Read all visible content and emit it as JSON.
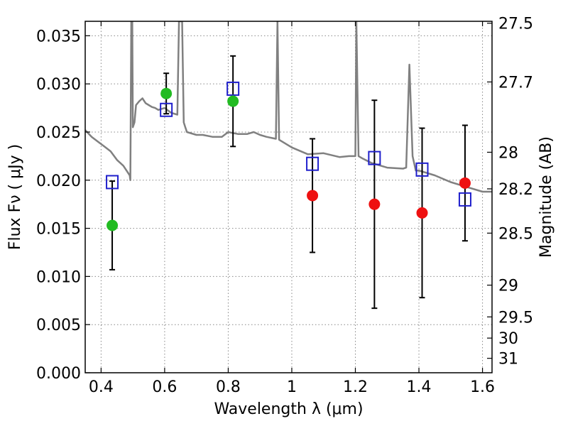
{
  "chart_data": {
    "type": "scatter",
    "xlabel": "Wavelength  λ (μm)",
    "ylabel": "Flux  Fν  ( μJy )",
    "ylabel_right": "Magnitude (AB)",
    "xlim": [
      0.35,
      1.63
    ],
    "ylim": [
      0.0,
      0.0365
    ],
    "grid": true,
    "x_ticks": [
      0.4,
      0.6,
      0.8,
      1.0,
      1.2,
      1.4,
      1.6
    ],
    "x_tick_labels": [
      "0.4",
      "0.6",
      "0.8",
      "1",
      "1.2",
      "1.4",
      "1.6"
    ],
    "y_ticks": [
      0.0,
      0.005,
      0.01,
      0.015,
      0.02,
      0.025,
      0.03,
      0.035
    ],
    "y_tick_labels": [
      "0.000",
      "0.005",
      "0.010",
      "0.015",
      "0.020",
      "0.025",
      "0.030",
      "0.035"
    ],
    "right_ticks": [
      {
        "label": "27.5",
        "flux": 0.0363
      },
      {
        "label": "27.7",
        "flux": 0.0302
      },
      {
        "label": "28",
        "flux": 0.0229
      },
      {
        "label": "28.2",
        "flux": 0.0191
      },
      {
        "label": "28.5",
        "flux": 0.0145
      },
      {
        "label": "29",
        "flux": 0.0091
      },
      {
        "label": "29.5",
        "flux": 0.0058
      },
      {
        "label": "30",
        "flux": 0.0036
      },
      {
        "label": "31",
        "flux": 0.0015
      }
    ],
    "series": [
      {
        "kind": "line",
        "color": "#808080",
        "x": [
          0.35,
          0.37,
          0.39,
          0.41,
          0.43,
          0.45,
          0.47,
          0.48,
          0.49,
          0.492,
          0.495,
          0.498,
          0.5,
          0.505,
          0.51,
          0.52,
          0.53,
          0.54,
          0.55,
          0.56,
          0.57,
          0.58,
          0.6,
          0.62,
          0.64,
          0.645,
          0.648,
          0.652,
          0.655,
          0.66,
          0.665,
          0.67,
          0.7,
          0.72,
          0.75,
          0.78,
          0.8,
          0.83,
          0.86,
          0.88,
          0.9,
          0.92,
          0.95,
          0.955,
          0.96,
          1.0,
          1.05,
          1.1,
          1.15,
          1.18,
          1.2,
          1.203,
          1.21,
          1.22,
          1.25,
          1.3,
          1.35,
          1.36,
          1.37,
          1.38,
          1.39,
          1.4,
          1.45,
          1.5,
          1.55,
          1.6,
          1.63
        ],
        "y": [
          0.0252,
          0.0245,
          0.024,
          0.0235,
          0.023,
          0.0221,
          0.0215,
          0.021,
          0.0205,
          0.02,
          0.0365,
          0.0365,
          0.0255,
          0.026,
          0.0278,
          0.0282,
          0.0285,
          0.028,
          0.0278,
          0.0276,
          0.0275,
          0.0273,
          0.0275,
          0.027,
          0.0268,
          0.0365,
          0.0365,
          0.0365,
          0.0365,
          0.026,
          0.0255,
          0.025,
          0.0247,
          0.0247,
          0.0245,
          0.0245,
          0.025,
          0.0248,
          0.0248,
          0.025,
          0.0247,
          0.0245,
          0.0243,
          0.0365,
          0.0242,
          0.0234,
          0.0227,
          0.0228,
          0.0224,
          0.0225,
          0.0225,
          0.0365,
          0.0225,
          0.0223,
          0.0218,
          0.0213,
          0.0212,
          0.0213,
          0.032,
          0.0225,
          0.021,
          0.021,
          0.0205,
          0.0198,
          0.0193,
          0.0188,
          0.0188
        ]
      },
      {
        "kind": "points",
        "marker": "square",
        "color": "#1f1fcc",
        "x": [
          0.435,
          0.605,
          0.815,
          1.065,
          1.26,
          1.41,
          1.545
        ],
        "y": [
          0.0198,
          0.0273,
          0.0295,
          0.0217,
          0.0223,
          0.0211,
          0.018
        ]
      },
      {
        "kind": "points",
        "marker": "circle",
        "color": "#22bb22",
        "x": [
          0.435,
          0.605,
          0.815
        ],
        "y": [
          0.0153,
          0.029,
          0.0282
        ],
        "yerr": [
          0.0046,
          0.0021,
          0.0047
        ]
      },
      {
        "kind": "points",
        "marker": "circle",
        "color": "#ee1111",
        "x": [
          1.065,
          1.26,
          1.41,
          1.545
        ],
        "y": [
          0.0184,
          0.0175,
          0.0166,
          0.0197
        ],
        "yerr": [
          0.0059,
          0.0108,
          0.0088,
          0.006
        ]
      }
    ]
  }
}
